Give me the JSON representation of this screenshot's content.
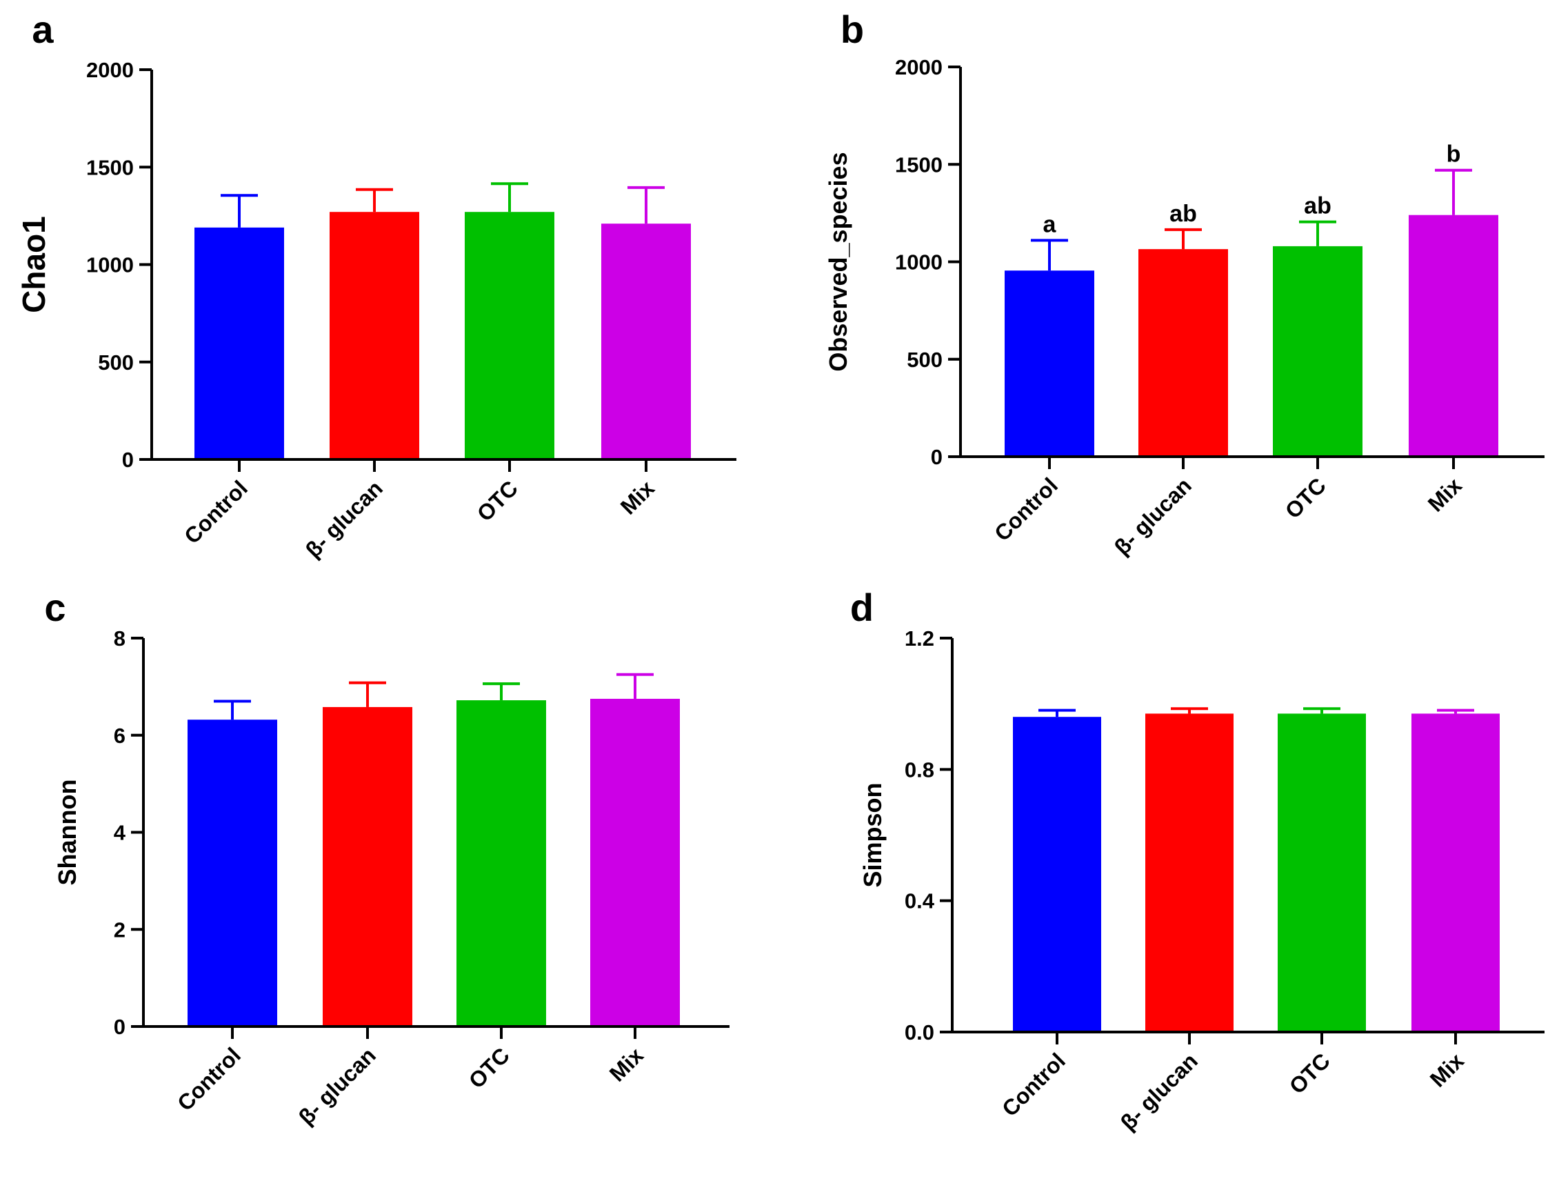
{
  "figure": {
    "panels": [
      "a",
      "b",
      "c",
      "d"
    ]
  },
  "chart_data": [
    {
      "panel_label": "a",
      "type": "bar",
      "ylabel": "Chao1",
      "ylim": [
        0,
        2000
      ],
      "yticks": [
        "0",
        "500",
        "1000",
        "1500",
        "2000"
      ],
      "categories": [
        "Control",
        "β- glucan",
        "OTC",
        "Mix"
      ],
      "colors": [
        "#0000ff",
        "#ff0000",
        "#00c000",
        "#cc00e6"
      ],
      "values": [
        1190,
        1270,
        1270,
        1210
      ],
      "errors": [
        165,
        115,
        145,
        185
      ],
      "significance": [
        "",
        "",
        "",
        ""
      ]
    },
    {
      "panel_label": "b",
      "type": "bar",
      "ylabel": "Observed_species",
      "ylim": [
        0,
        2000
      ],
      "yticks": [
        "0",
        "500",
        "1000",
        "1500",
        "2000"
      ],
      "categories": [
        "Control",
        "β- glucan",
        "OTC",
        "Mix"
      ],
      "colors": [
        "#0000ff",
        "#ff0000",
        "#00c000",
        "#cc00e6"
      ],
      "values": [
        955,
        1065,
        1080,
        1240
      ],
      "errors": [
        155,
        100,
        125,
        230
      ],
      "significance": [
        "a",
        "ab",
        "ab",
        "b"
      ]
    },
    {
      "panel_label": "c",
      "type": "bar",
      "ylabel": "Shannon",
      "ylim": [
        0,
        8
      ],
      "yticks": [
        "0",
        "2",
        "4",
        "6",
        "8"
      ],
      "categories": [
        "Control",
        "β- glucan",
        "OTC",
        "Mix"
      ],
      "colors": [
        "#0000ff",
        "#ff0000",
        "#00c000",
        "#cc00e6"
      ],
      "values": [
        6.32,
        6.58,
        6.72,
        6.75
      ],
      "errors": [
        0.38,
        0.5,
        0.34,
        0.5
      ],
      "significance": [
        "",
        "",
        "",
        ""
      ]
    },
    {
      "panel_label": "d",
      "type": "bar",
      "ylabel": "Simpson",
      "ylim": [
        0,
        1.2
      ],
      "yticks": [
        "0.0",
        "0.4",
        "0.8",
        "1.2"
      ],
      "categories": [
        "Control",
        "β- glucan",
        "OTC",
        "Mix"
      ],
      "colors": [
        "#0000ff",
        "#ff0000",
        "#00c000",
        "#cc00e6"
      ],
      "values": [
        0.96,
        0.97,
        0.97,
        0.97
      ],
      "errors": [
        0.02,
        0.015,
        0.015,
        0.01
      ],
      "significance": [
        "",
        "",
        "",
        ""
      ]
    }
  ]
}
